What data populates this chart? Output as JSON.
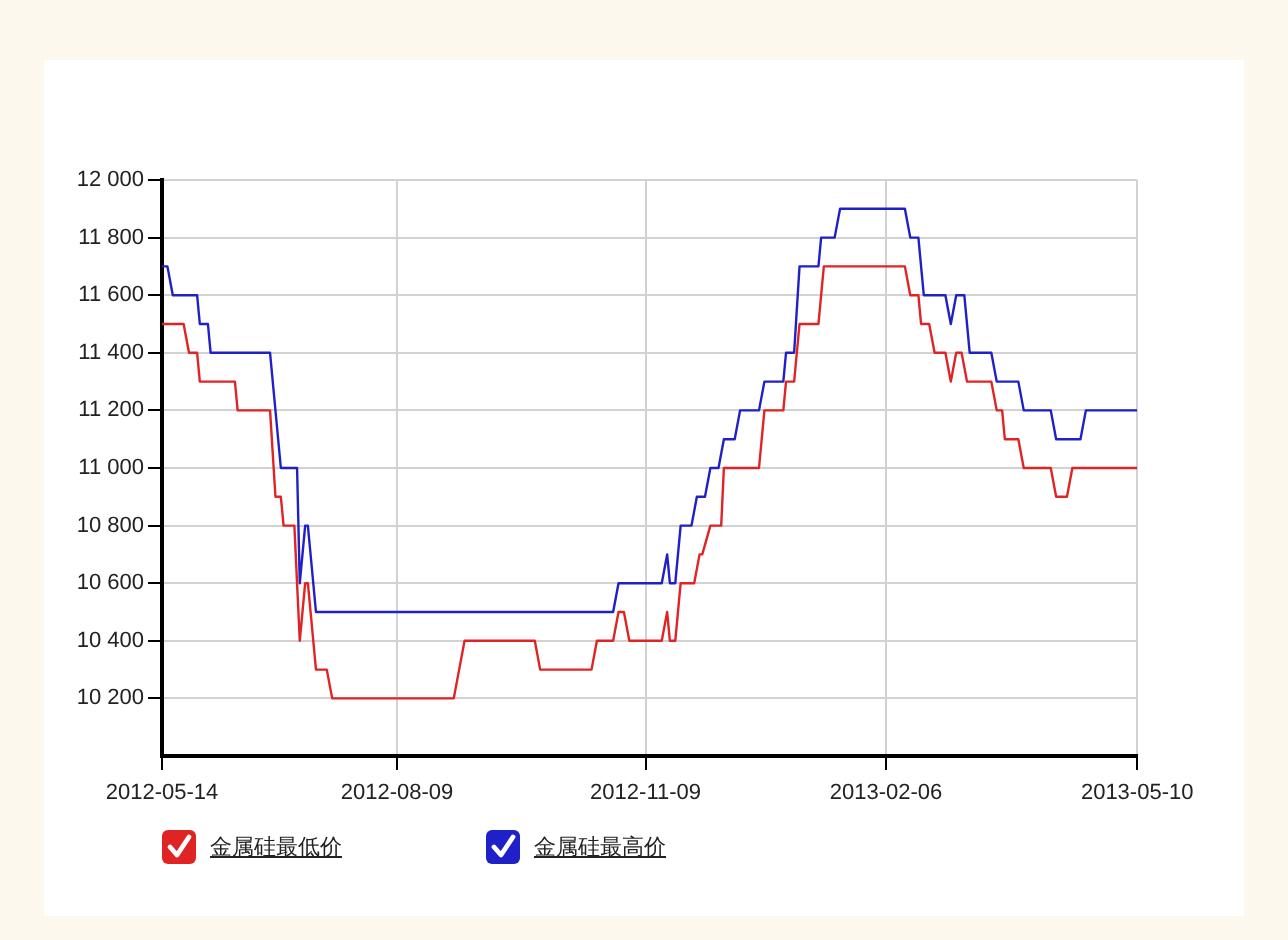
{
  "chart_data": {
    "type": "line",
    "legend": "bottom",
    "grid": true,
    "marker": "none",
    "xlim": [
      "2012-05-14",
      "2013-05-10"
    ],
    "xticks": [
      "2012-05-14",
      "2012-08-09",
      "2012-11-09",
      "2013-02-06",
      "2013-05-10"
    ],
    "ylim": [
      10000,
      12000
    ],
    "yticks": [
      {
        "value": 10200,
        "label": "10 200"
      },
      {
        "value": 10400,
        "label": "10 400"
      },
      {
        "value": 10600,
        "label": "10 600"
      },
      {
        "value": 10800,
        "label": "10 800"
      },
      {
        "value": 11000,
        "label": "11 000"
      },
      {
        "value": 11200,
        "label": "11 200"
      },
      {
        "value": 11400,
        "label": "11 400"
      },
      {
        "value": 11600,
        "label": "11 600"
      },
      {
        "value": 11800,
        "label": "11 800"
      },
      {
        "value": 12000,
        "label": "12 000"
      }
    ],
    "series": [
      {
        "name": "金属硅最低价",
        "color": "#e02424",
        "x": [
          "2012-05-14",
          "2012-05-22",
          "2012-05-24",
          "2012-05-27",
          "2012-05-28",
          "2012-06-10",
          "2012-06-11",
          "2012-06-23",
          "2012-06-25",
          "2012-06-27",
          "2012-06-28",
          "2012-07-02",
          "2012-07-04",
          "2012-07-06",
          "2012-07-07",
          "2012-07-10",
          "2012-07-14",
          "2012-07-16",
          "2012-08-30",
          "2012-09-01",
          "2012-09-03",
          "2012-09-29",
          "2012-10-01",
          "2012-10-20",
          "2012-10-22",
          "2012-10-28",
          "2012-10-30",
          "2012-11-01",
          "2012-11-03",
          "2012-11-15",
          "2012-11-17",
          "2012-11-18",
          "2012-11-20",
          "2012-11-22",
          "2012-11-27",
          "2012-11-29",
          "2012-11-30",
          "2012-12-03",
          "2012-12-07",
          "2012-12-08",
          "2012-12-21",
          "2012-12-23",
          "2012-12-30",
          "2012-12-31",
          "2013-01-03",
          "2013-01-05",
          "2013-01-12",
          "2013-01-14",
          "2013-02-13",
          "2013-02-15",
          "2013-02-18",
          "2013-02-19",
          "2013-02-22",
          "2013-02-24",
          "2013-02-28",
          "2013-03-02",
          "2013-03-04",
          "2013-03-06",
          "2013-03-08",
          "2013-03-17",
          "2013-03-19",
          "2013-03-21",
          "2013-03-22",
          "2013-03-27",
          "2013-03-29",
          "2013-04-08",
          "2013-04-10",
          "2013-04-14",
          "2013-04-16",
          "2013-05-10"
        ],
        "values": [
          11500,
          11500,
          11400,
          11400,
          11300,
          11300,
          11200,
          11200,
          10900,
          10900,
          10800,
          10800,
          10400,
          10600,
          10600,
          10300,
          10300,
          10200,
          10200,
          10300,
          10400,
          10400,
          10300,
          10300,
          10400,
          10400,
          10500,
          10500,
          10400,
          10400,
          10500,
          10400,
          10400,
          10600,
          10600,
          10700,
          10700,
          10800,
          10800,
          11000,
          11000,
          11200,
          11200,
          11300,
          11300,
          11500,
          11500,
          11700,
          11700,
          11600,
          11600,
          11500,
          11500,
          11400,
          11400,
          11300,
          11400,
          11400,
          11300,
          11300,
          11200,
          11200,
          11100,
          11100,
          11000,
          11000,
          10900,
          10900,
          11000,
          11000
        ]
      },
      {
        "name": "金属硅最高价",
        "color": "#2020c8",
        "x": [
          "2012-05-14",
          "2012-05-16",
          "2012-05-18",
          "2012-05-27",
          "2012-05-28",
          "2012-05-31",
          "2012-06-01",
          "2012-06-23",
          "2012-06-27",
          "2012-07-03",
          "2012-07-04",
          "2012-07-06",
          "2012-07-07",
          "2012-07-10",
          "2012-10-28",
          "2012-10-30",
          "2012-11-15",
          "2012-11-17",
          "2012-11-18",
          "2012-11-20",
          "2012-11-22",
          "2012-11-26",
          "2012-11-28",
          "2012-12-01",
          "2012-12-03",
          "2012-12-06",
          "2012-12-08",
          "2012-12-12",
          "2012-12-14",
          "2012-12-21",
          "2012-12-23",
          "2012-12-30",
          "2012-12-31",
          "2013-01-03",
          "2013-01-05",
          "2013-01-12",
          "2013-01-13",
          "2013-01-18",
          "2013-01-20",
          "2013-02-13",
          "2013-02-15",
          "2013-02-18",
          "2013-02-20",
          "2013-02-28",
          "2013-03-02",
          "2013-03-04",
          "2013-03-07",
          "2013-03-09",
          "2013-03-17",
          "2013-03-19",
          "2013-03-27",
          "2013-03-29",
          "2013-04-08",
          "2013-04-10",
          "2013-04-19",
          "2013-04-21",
          "2013-05-10"
        ],
        "values": [
          11700,
          11700,
          11600,
          11600,
          11500,
          11500,
          11400,
          11400,
          11000,
          11000,
          10600,
          10800,
          10800,
          10500,
          10500,
          10600,
          10600,
          10700,
          10600,
          10600,
          10800,
          10800,
          10900,
          10900,
          11000,
          11000,
          11100,
          11100,
          11200,
          11200,
          11300,
          11300,
          11400,
          11400,
          11700,
          11700,
          11800,
          11800,
          11900,
          11900,
          11800,
          11800,
          11600,
          11600,
          11500,
          11600,
          11600,
          11400,
          11400,
          11300,
          11300,
          11200,
          11200,
          11100,
          11100,
          11200,
          11200
        ]
      }
    ]
  }
}
